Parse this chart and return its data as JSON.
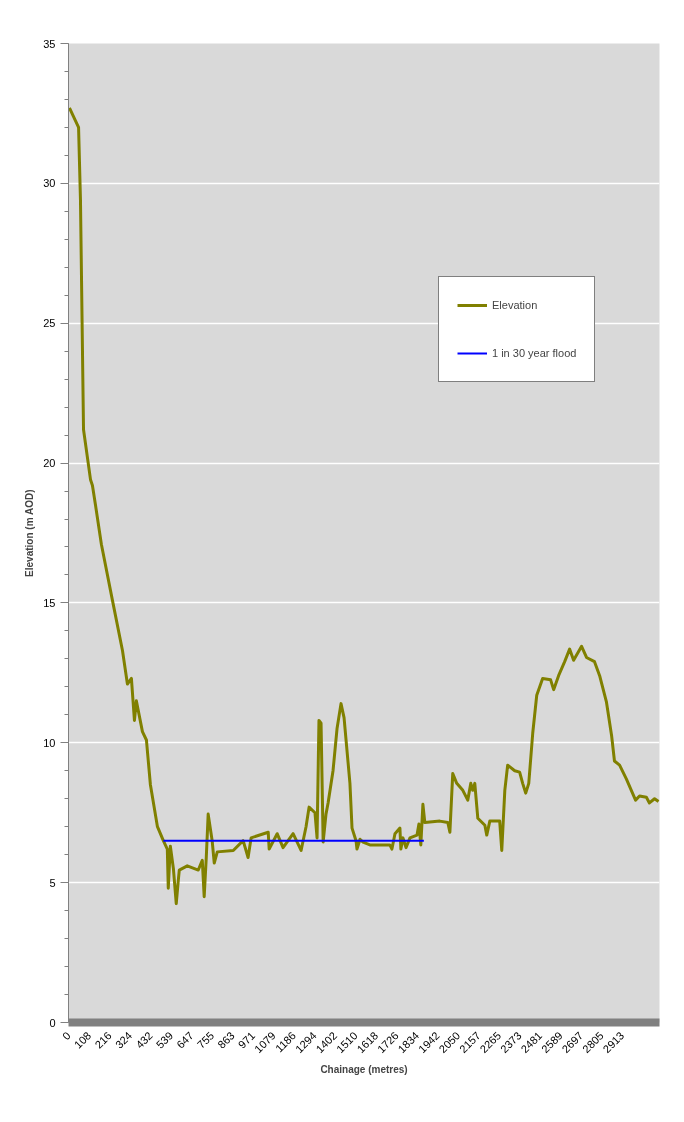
{
  "chart_data": {
    "type": "line",
    "xlabel": "Chainage (metres)",
    "ylabel": "Elevation (m AOD)",
    "xlim": [
      0,
      3110
    ],
    "ylim": [
      0,
      35
    ],
    "yticks": [
      0,
      5,
      10,
      15,
      20,
      25,
      30,
      35
    ],
    "xticks": [
      0,
      108,
      216,
      324,
      432,
      539,
      647,
      755,
      863,
      971,
      1079,
      1186,
      1294,
      1402,
      1510,
      1618,
      1726,
      1834,
      1942,
      2050,
      2157,
      2265,
      2373,
      2481,
      2589,
      2697,
      2805,
      2913
    ],
    "grid": "y",
    "legend": "top right",
    "marker": "none",
    "line_style": "solid",
    "series": [
      {
        "name": "Elevation",
        "color": "#808000",
        "x": [
          5,
          53,
          63,
          79,
          116,
          126,
          142,
          173,
          231,
          284,
          310,
          331,
          347,
          357,
          389,
          410,
          431,
          468,
          499,
          520,
          525,
          536,
          552,
          567,
          578,
          583,
          625,
          683,
          704,
          714,
          725,
          735,
          756,
          767,
          783,
          867,
          919,
          945,
          961,
          1051,
          1056,
          1098,
          1129,
          1182,
          1224,
          1250,
          1266,
          1297,
          1308,
          1318,
          1329,
          1340,
          1355,
          1366,
          1392,
          1413,
          1434,
          1450,
          1481,
          1492,
          1513,
          1518,
          1534,
          1550,
          1586,
          1691,
          1702,
          1718,
          1744,
          1749,
          1760,
          1776,
          1797,
          1834,
          1844,
          1854,
          1865,
          1875,
          1954,
          1996,
          2007,
          2022,
          2043,
          2075,
          2101,
          2117,
          2127,
          2138,
          2154,
          2191,
          2201,
          2217,
          2269,
          2280,
          2296,
          2311,
          2348,
          2374,
          2390,
          2406,
          2422,
          2443,
          2464,
          2495,
          2537,
          2553,
          2579,
          2611,
          2637,
          2658,
          2700,
          2726,
          2768,
          2795,
          2831,
          2858,
          2873,
          2900,
          2936,
          2984,
          3005,
          3041,
          3057,
          3084,
          3105
        ],
        "values": [
          32.7,
          32.0,
          29.4,
          21.2,
          19.4,
          19.2,
          18.5,
          17.1,
          15.1,
          13.3,
          12.1,
          12.3,
          10.8,
          11.5,
          10.4,
          10.1,
          8.5,
          7.0,
          6.5,
          6.2,
          4.8,
          6.3,
          5.5,
          4.25,
          5.1,
          5.45,
          5.6,
          5.45,
          5.8,
          4.5,
          5.9,
          7.45,
          6.5,
          5.7,
          6.1,
          6.15,
          6.5,
          5.9,
          6.6,
          6.8,
          6.2,
          6.75,
          6.25,
          6.75,
          6.15,
          7.0,
          7.7,
          7.5,
          6.6,
          10.8,
          10.7,
          6.45,
          7.45,
          7.85,
          9.0,
          10.5,
          11.4,
          10.9,
          8.55,
          6.95,
          6.5,
          6.2,
          6.55,
          6.45,
          6.35,
          6.35,
          6.2,
          6.75,
          6.95,
          6.2,
          6.6,
          6.25,
          6.6,
          6.7,
          7.1,
          6.35,
          7.8,
          7.15,
          7.2,
          7.15,
          6.8,
          8.9,
          8.55,
          8.3,
          7.95,
          8.55,
          8.3,
          8.55,
          7.3,
          7.05,
          6.7,
          7.2,
          7.2,
          6.15,
          8.3,
          9.2,
          9.0,
          8.95,
          8.55,
          8.2,
          8.55,
          10.35,
          11.7,
          12.3,
          12.25,
          11.9,
          12.4,
          12.9,
          13.35,
          12.95,
          13.45,
          13.05,
          12.9,
          12.4,
          11.45,
          10.25,
          9.35,
          9.2,
          8.7,
          7.95,
          8.1,
          8.05,
          7.85,
          8.0,
          7.9
        ]
      },
      {
        "name": "1 in 30 year flood",
        "color": "#0000ff",
        "x": [
          499,
          1870
        ],
        "values": [
          6.5,
          6.5
        ]
      }
    ]
  }
}
